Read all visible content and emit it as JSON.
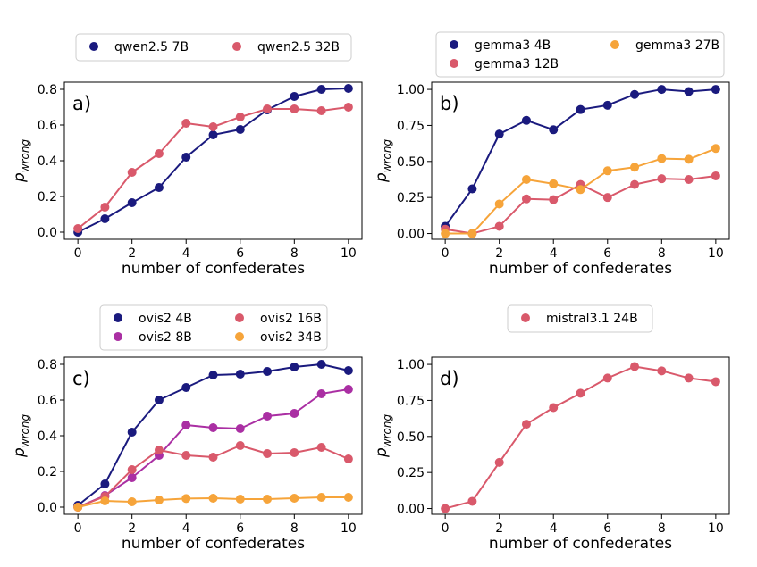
{
  "figure": {
    "xlabel": "number of confederates",
    "ylabel_main": "p",
    "ylabel_sub": "wrong",
    "colors": {
      "c1": "#1a1a7e",
      "c2": "#d9596b",
      "c3": "#aa2fa3",
      "c4": "#f6a43a"
    }
  },
  "chart_data": [
    {
      "type": "line",
      "panel_label": "a)",
      "xlabel": "number of confederates",
      "ylabel": "p_wrong",
      "xlim": [
        -0.5,
        10.5
      ],
      "ylim": [
        -0.04,
        0.84
      ],
      "x": [
        0,
        1,
        2,
        3,
        4,
        5,
        6,
        7,
        8,
        9,
        10
      ],
      "xticks": [
        "0",
        "2",
        "4",
        "6",
        "8",
        "10"
      ],
      "yticks": [
        "0.0",
        "0.2",
        "0.4",
        "0.6",
        "0.8"
      ],
      "legend_columns": 2,
      "series": [
        {
          "name": "qwen2.5 7B",
          "color": "#1a1a7e",
          "values": [
            0.0,
            0.075,
            0.165,
            0.25,
            0.42,
            0.545,
            0.575,
            0.685,
            0.76,
            0.8,
            0.805
          ]
        },
        {
          "name": "qwen2.5 32B",
          "color": "#d9596b",
          "values": [
            0.02,
            0.14,
            0.335,
            0.44,
            0.61,
            0.59,
            0.645,
            0.69,
            0.69,
            0.68,
            0.7
          ]
        }
      ]
    },
    {
      "type": "line",
      "panel_label": "b)",
      "xlabel": "number of confederates",
      "ylabel": "p_wrong",
      "xlim": [
        -0.5,
        10.5
      ],
      "ylim": [
        -0.04,
        1.05
      ],
      "x": [
        0,
        1,
        2,
        3,
        4,
        5,
        6,
        7,
        8,
        9,
        10
      ],
      "xticks": [
        "0",
        "2",
        "4",
        "6",
        "8",
        "10"
      ],
      "yticks": [
        "0.00",
        "0.25",
        "0.50",
        "0.75",
        "1.00"
      ],
      "legend_columns": 2,
      "series": [
        {
          "name": "gemma3 4B",
          "color": "#1a1a7e",
          "values": [
            0.05,
            0.31,
            0.69,
            0.785,
            0.72,
            0.86,
            0.89,
            0.965,
            1.0,
            0.985,
            1.0
          ]
        },
        {
          "name": "gemma3 12B",
          "color": "#d9596b",
          "values": [
            0.03,
            0.0,
            0.05,
            0.24,
            0.235,
            0.34,
            0.25,
            0.34,
            0.38,
            0.375,
            0.4
          ]
        },
        {
          "name": "gemma3 27B",
          "color": "#f6a43a",
          "values": [
            0.0,
            0.0,
            0.205,
            0.375,
            0.345,
            0.305,
            0.435,
            0.46,
            0.52,
            0.515,
            0.59
          ]
        }
      ]
    },
    {
      "type": "line",
      "panel_label": "c)",
      "xlabel": "number of confederates",
      "ylabel": "p_wrong",
      "xlim": [
        -0.5,
        10.5
      ],
      "ylim": [
        -0.04,
        0.84
      ],
      "x": [
        0,
        1,
        2,
        3,
        4,
        5,
        6,
        7,
        8,
        9,
        10
      ],
      "xticks": [
        "0",
        "2",
        "4",
        "6",
        "8",
        "10"
      ],
      "yticks": [
        "0.0",
        "0.2",
        "0.4",
        "0.6",
        "0.8"
      ],
      "legend_columns": 2,
      "series": [
        {
          "name": "ovis2 4B",
          "color": "#1a1a7e",
          "values": [
            0.01,
            0.13,
            0.42,
            0.6,
            0.67,
            0.74,
            0.745,
            0.76,
            0.785,
            0.8,
            0.765
          ]
        },
        {
          "name": "ovis2 8B",
          "color": "#aa2fa3",
          "values": [
            0.0,
            0.065,
            0.165,
            0.29,
            0.46,
            0.445,
            0.44,
            0.51,
            0.525,
            0.635,
            0.66
          ]
        },
        {
          "name": "ovis2 16B",
          "color": "#d9596b",
          "values": [
            0.0,
            0.06,
            0.21,
            0.32,
            0.29,
            0.28,
            0.345,
            0.3,
            0.305,
            0.335,
            0.27
          ]
        },
        {
          "name": "ovis2 34B",
          "color": "#f6a43a",
          "values": [
            0.0,
            0.035,
            0.03,
            0.04,
            0.048,
            0.05,
            0.045,
            0.045,
            0.05,
            0.055,
            0.055
          ]
        }
      ]
    },
    {
      "type": "line",
      "panel_label": "d)",
      "xlabel": "number of confederates",
      "ylabel": "p_wrong",
      "xlim": [
        -0.5,
        10.5
      ],
      "ylim": [
        -0.04,
        1.05
      ],
      "x": [
        0,
        1,
        2,
        3,
        4,
        5,
        6,
        7,
        8,
        9,
        10
      ],
      "xticks": [
        "0",
        "2",
        "4",
        "6",
        "8",
        "10"
      ],
      "yticks": [
        "0.00",
        "0.25",
        "0.50",
        "0.75",
        "1.00"
      ],
      "legend_columns": 1,
      "series": [
        {
          "name": "mistral3.1 24B",
          "color": "#d9596b",
          "values": [
            0.0,
            0.05,
            0.32,
            0.585,
            0.7,
            0.8,
            0.905,
            0.985,
            0.955,
            0.905,
            0.88
          ]
        }
      ]
    }
  ]
}
